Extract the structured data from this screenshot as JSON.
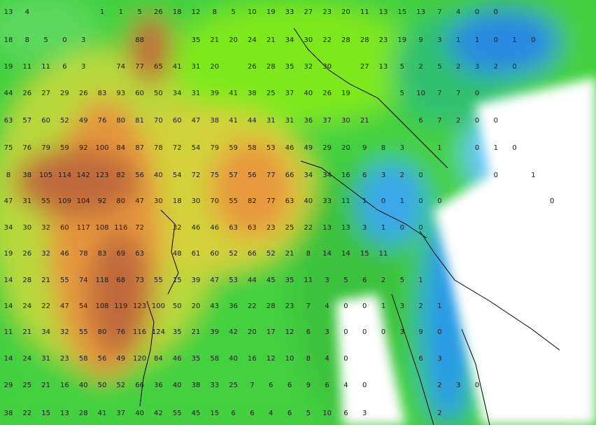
{
  "map": {
    "rows": [
      [
        13,
        4,
        null,
        null,
        null,
        1,
        1,
        5,
        26,
        18,
        12,
        8,
        5,
        10,
        19,
        33,
        27,
        23,
        20,
        11,
        13,
        15,
        13,
        7,
        4,
        0,
        0
      ],
      [
        18,
        8,
        5,
        0,
        3,
        null,
        null,
        88,
        null,
        null,
        35,
        21,
        20,
        24,
        21,
        34,
        30,
        22,
        28,
        28,
        23,
        19,
        9,
        3,
        1,
        1,
        0,
        1,
        0
      ],
      [
        19,
        11,
        11,
        6,
        3,
        null,
        74,
        77,
        65,
        41,
        31,
        20,
        null,
        26,
        28,
        35,
        32,
        30,
        null,
        27,
        13,
        5,
        2,
        5,
        2,
        3,
        2,
        0
      ],
      [
        44,
        26,
        27,
        29,
        26,
        83,
        93,
        60,
        50,
        34,
        31,
        39,
        41,
        38,
        25,
        37,
        40,
        26,
        19,
        null,
        null,
        5,
        10,
        7,
        7,
        0
      ],
      [
        63,
        57,
        60,
        52,
        49,
        76,
        80,
        81,
        70,
        60,
        47,
        38,
        41,
        44,
        31,
        31,
        36,
        37,
        30,
        21,
        null,
        null,
        6,
        7,
        2,
        0,
        0
      ],
      [
        75,
        76,
        79,
        59,
        92,
        100,
        84,
        87,
        78,
        72,
        54,
        79,
        59,
        58,
        53,
        46,
        49,
        29,
        20,
        9,
        8,
        3,
        null,
        1,
        null,
        0,
        1,
        0
      ],
      [
        8,
        38,
        105,
        114,
        142,
        123,
        82,
        56,
        40,
        54,
        72,
        75,
        57,
        56,
        77,
        66,
        34,
        34,
        16,
        6,
        3,
        2,
        0,
        null,
        null,
        null,
        0,
        null,
        1
      ],
      [
        47,
        31,
        55,
        109,
        104,
        92,
        80,
        47,
        30,
        18,
        30,
        70,
        55,
        82,
        77,
        63,
        40,
        33,
        11,
        1,
        0,
        1,
        0,
        0,
        null,
        null,
        null,
        null,
        null,
        0
      ],
      [
        34,
        30,
        32,
        60,
        117,
        108,
        116,
        72,
        null,
        32,
        46,
        46,
        63,
        63,
        23,
        25,
        22,
        13,
        13,
        3,
        1,
        0,
        0
      ],
      [
        19,
        26,
        32,
        46,
        78,
        83,
        69,
        63,
        null,
        48,
        61,
        60,
        52,
        66,
        52,
        21,
        8,
        14,
        14,
        15,
        11
      ],
      [
        14,
        28,
        21,
        55,
        74,
        118,
        68,
        73,
        55,
        15,
        39,
        47,
        53,
        44,
        45,
        35,
        11,
        3,
        5,
        6,
        2,
        5,
        1
      ],
      [
        14,
        24,
        22,
        47,
        54,
        108,
        119,
        123,
        100,
        50,
        20,
        43,
        36,
        22,
        28,
        23,
        7,
        4,
        0,
        0,
        1,
        3,
        2,
        1
      ],
      [
        11,
        21,
        34,
        32,
        55,
        80,
        76,
        116,
        124,
        35,
        21,
        39,
        42,
        20,
        17,
        12,
        6,
        3,
        0,
        0,
        0,
        3,
        9,
        0
      ],
      [
        14,
        24,
        31,
        23,
        58,
        56,
        49,
        120,
        84,
        46,
        35,
        58,
        40,
        16,
        12,
        10,
        8,
        4,
        0,
        null,
        null,
        null,
        6,
        3
      ],
      [
        29,
        25,
        21,
        16,
        40,
        50,
        52,
        66,
        36,
        40,
        38,
        33,
        25,
        7,
        6,
        6,
        9,
        6,
        4,
        0,
        null,
        null,
        null,
        2,
        3,
        0
      ],
      [
        38,
        22,
        15,
        13,
        28,
        41,
        37,
        40,
        42,
        55,
        45,
        15,
        6,
        6,
        4,
        6,
        5,
        10,
        6,
        3,
        null,
        null,
        null,
        2
      ]
    ]
  }
}
